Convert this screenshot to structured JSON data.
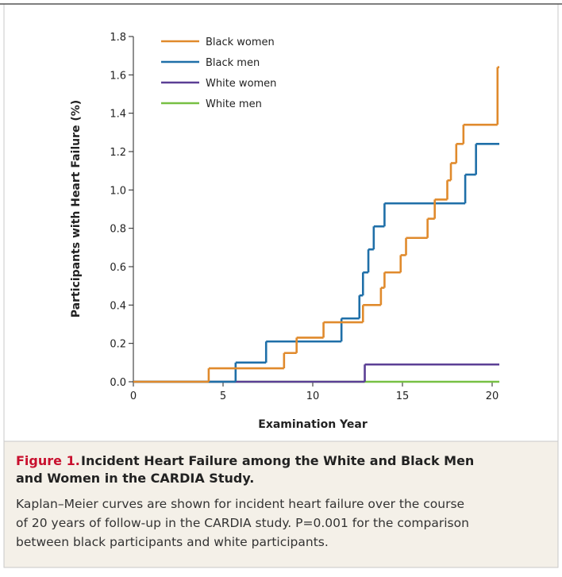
{
  "chart_data": {
    "type": "step",
    "y_label": "Participants with Heart Failure (%)",
    "x_label": "Examination Year",
    "xlim": [
      0,
      20.4
    ],
    "xticks": [
      0,
      5,
      10,
      15,
      20
    ],
    "ylim": [
      0,
      1.8
    ],
    "yticks": [
      {
        "value": 0,
        "label": "0.0"
      },
      0.2,
      0.4,
      0.6,
      0.8,
      {
        "value": 1,
        "label": "1.0"
      },
      1.2,
      1.4,
      1.6,
      1.8
    ],
    "legend": "top-left",
    "series": [
      {
        "name": "Black women",
        "color": "#e08a2c",
        "x": [
          0,
          4.2,
          8.4,
          9.1,
          10.6,
          12.8,
          13.8,
          14.0,
          14.9,
          15.2,
          16.4,
          16.8,
          17.5,
          17.7,
          18.0,
          18.4,
          20.3
        ],
        "values": [
          0,
          0.07,
          0.15,
          0.23,
          0.31,
          0.4,
          0.49,
          0.57,
          0.66,
          0.75,
          0.85,
          0.95,
          1.05,
          1.14,
          1.24,
          1.34,
          1.64
        ]
      },
      {
        "name": "Black men",
        "color": "#1f6fa8",
        "x": [
          0,
          5.7,
          7.4,
          11.6,
          12.6,
          12.8,
          13.1,
          13.4,
          14.0,
          18.5,
          19.1
        ],
        "values": [
          0,
          0.1,
          0.21,
          0.33,
          0.45,
          0.57,
          0.69,
          0.81,
          0.93,
          1.08,
          1.24
        ]
      },
      {
        "name": "White women",
        "color": "#5b3f95",
        "x": [
          0,
          12.9
        ],
        "values": [
          0,
          0.09
        ]
      },
      {
        "name": "White men",
        "color": "#77c043",
        "x": [
          0
        ],
        "values": [
          0
        ]
      }
    ]
  },
  "caption": {
    "label": "Figure 1.",
    "title_lines": [
      "Incident Heart Failure among the White and Black Men",
      "and Women in the CARDIA Study."
    ],
    "body_lines": [
      "Kaplan–Meier curves are shown for incident heart failure over the course",
      "of 20 years of follow-up in the CARDIA study. P=0.001 for the comparison",
      "between black participants and white participants."
    ]
  }
}
